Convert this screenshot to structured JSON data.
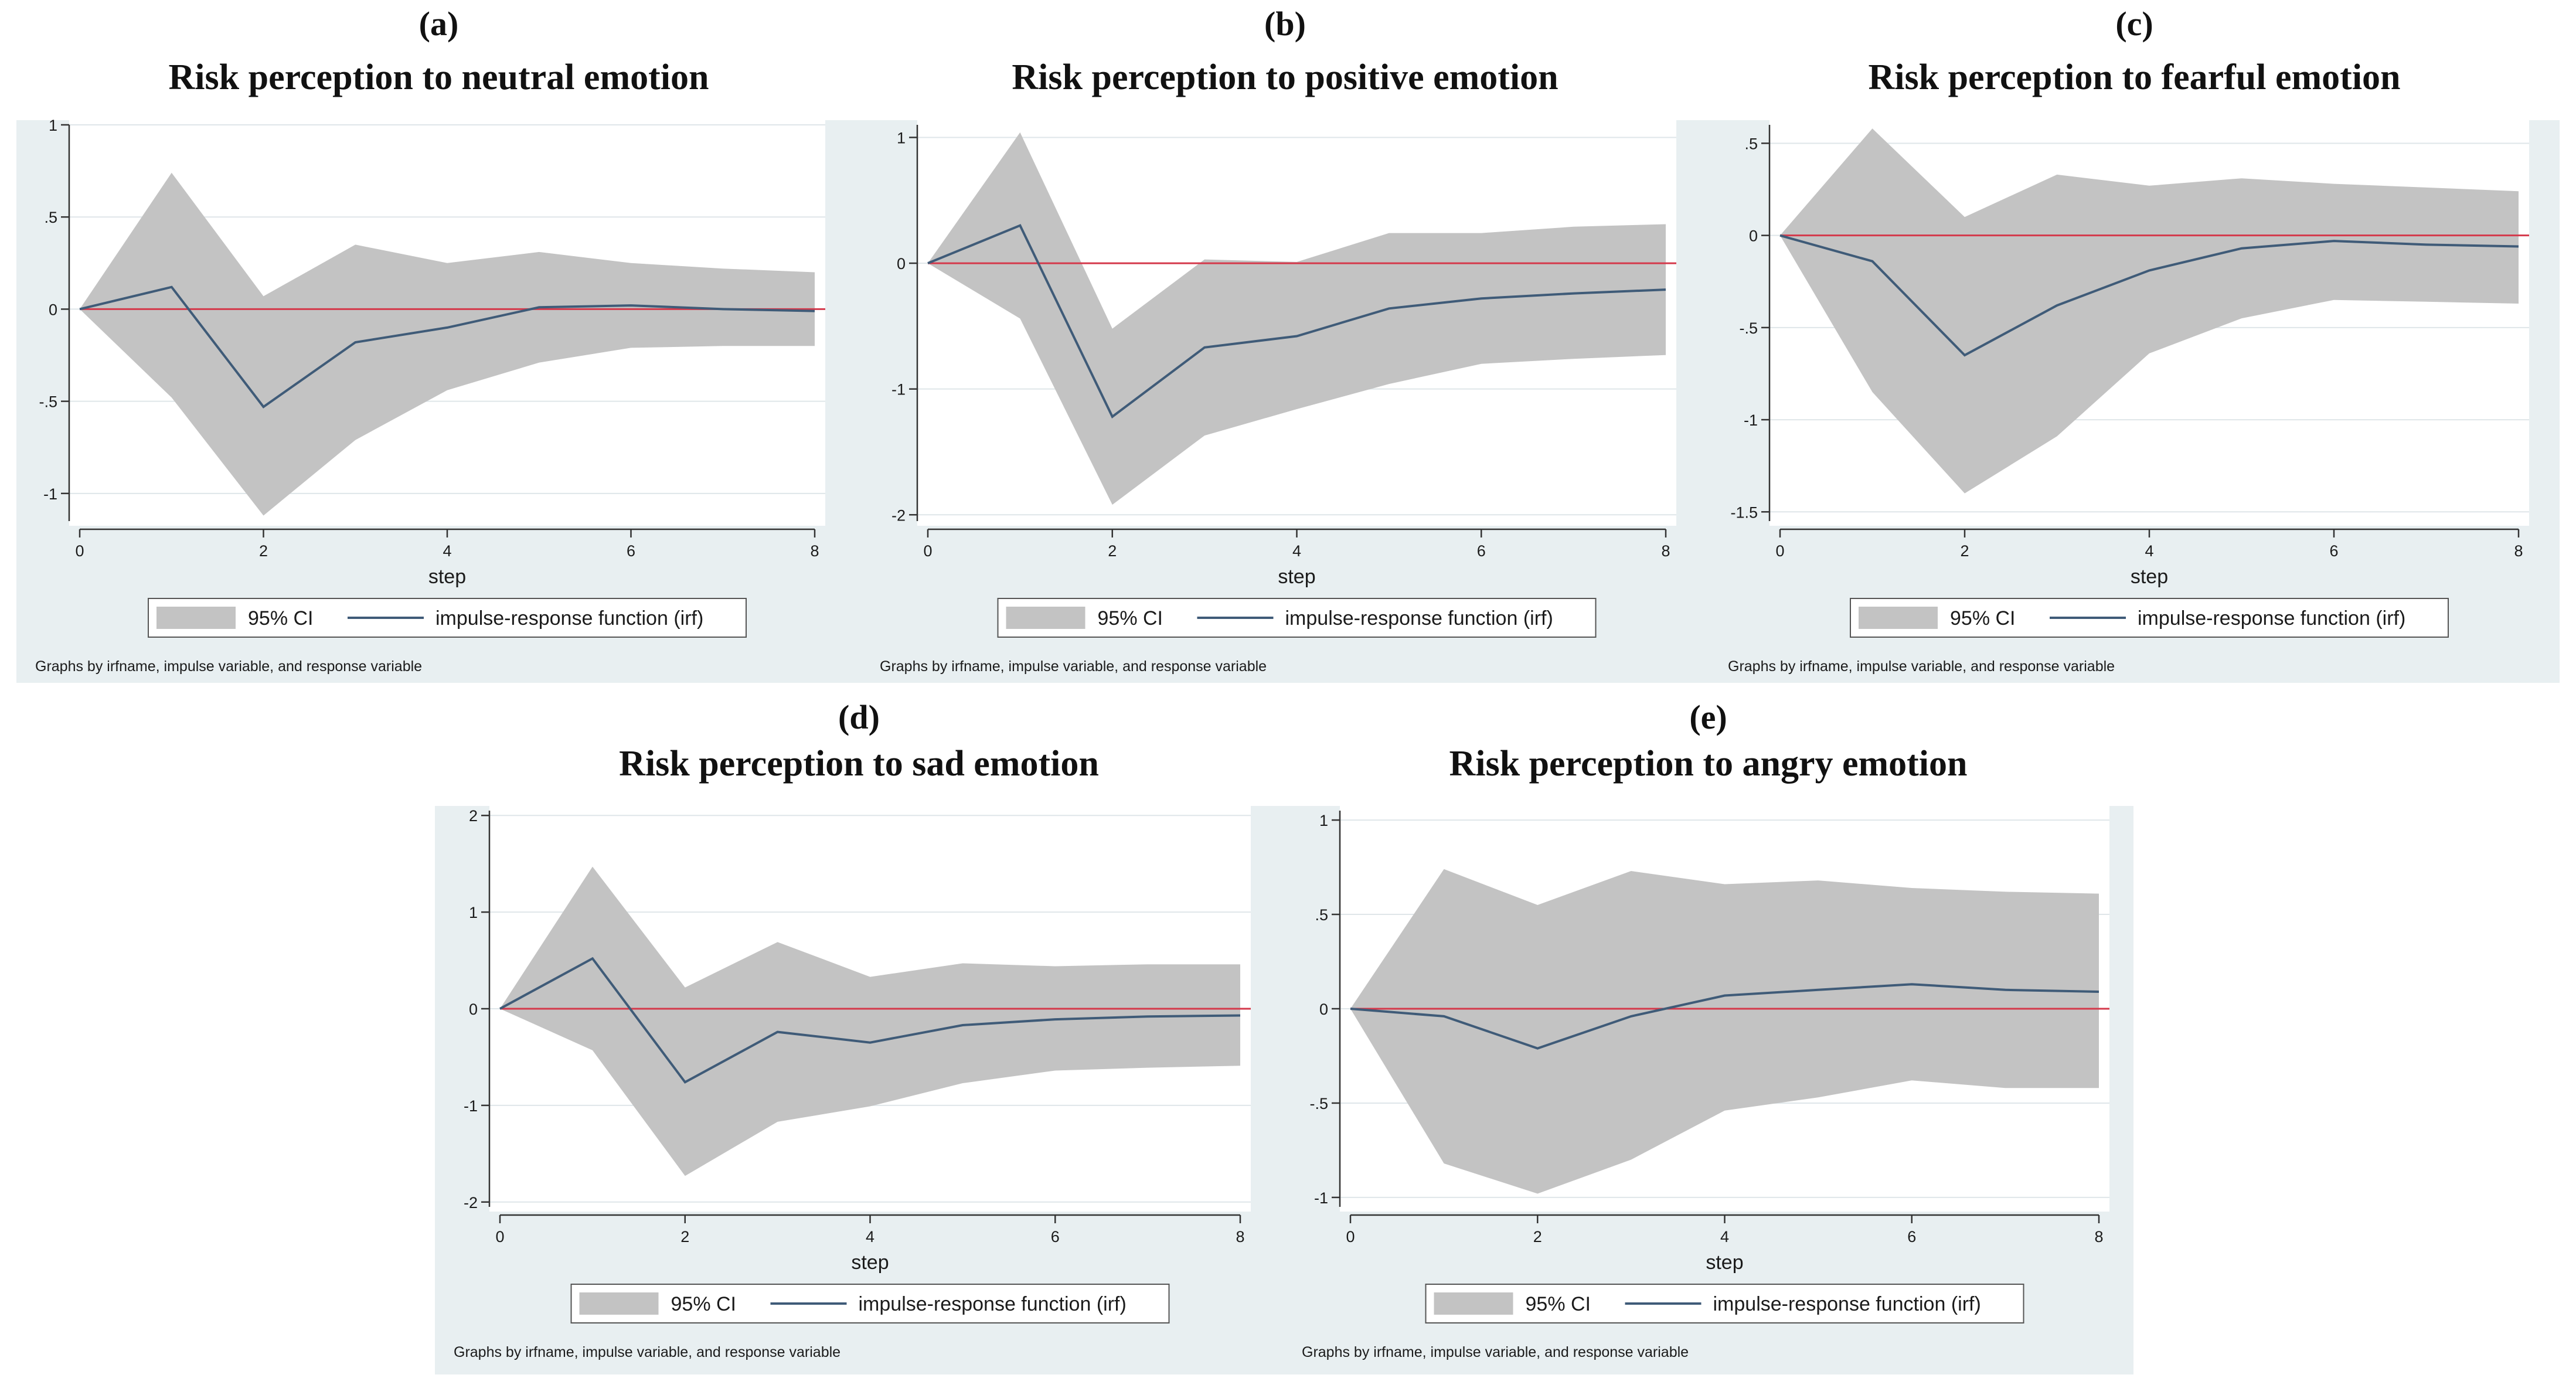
{
  "colors": {
    "panel_bg": "#e8eff1",
    "plot_bg": "#ffffff",
    "ci_fill": "#c3c3c3",
    "irf_line": "#3f5b78",
    "zero_line": "#d4394b",
    "grid": "#dfe6e9",
    "text": "#1b1b1b"
  },
  "legend": {
    "ci_label": "95% CI",
    "irf_label": "impulse-response function (irf)"
  },
  "xaxis_title": "step",
  "footnote": "Graphs by irfname, impulse variable, and response variable",
  "chart_data": [
    {
      "id": "a",
      "type": "area",
      "letter": "(a)",
      "title": "Risk perception to neutral emotion",
      "xlabel": "step",
      "ylabel": "",
      "xlim": [
        0,
        8
      ],
      "xticks": [
        0,
        2,
        4,
        6,
        8
      ],
      "xtick_labels": [
        "0",
        "2",
        "4",
        "6",
        "8"
      ],
      "ylim": [
        -1.15,
        1.0
      ],
      "yticks": [
        1,
        0.5,
        0,
        -0.5,
        -1
      ],
      "ytick_labels": [
        "1",
        ".5",
        "0",
        "-.5",
        "-1"
      ],
      "series": [
        {
          "name": "impulse-response function (irf)",
          "x": [
            0,
            1,
            2,
            3,
            4,
            5,
            6,
            7,
            8
          ],
          "values": [
            0,
            0.12,
            -0.53,
            -0.18,
            -0.1,
            0.01,
            0.02,
            0.0,
            -0.01
          ]
        },
        {
          "name": "95% CI upper",
          "x": [
            0,
            1,
            2,
            3,
            4,
            5,
            6,
            7,
            8
          ],
          "values": [
            0,
            0.74,
            0.07,
            0.35,
            0.25,
            0.31,
            0.25,
            0.22,
            0.2
          ]
        },
        {
          "name": "95% CI lower",
          "x": [
            0,
            1,
            2,
            3,
            4,
            5,
            6,
            7,
            8
          ],
          "values": [
            0,
            -0.48,
            -1.12,
            -0.71,
            -0.44,
            -0.29,
            -0.21,
            -0.2,
            -0.2
          ]
        }
      ]
    },
    {
      "id": "b",
      "type": "area",
      "letter": "(b)",
      "title": "Risk perception to positive emotion",
      "xlabel": "step",
      "ylabel": "",
      "xlim": [
        0,
        8
      ],
      "xticks": [
        0,
        2,
        4,
        6,
        8
      ],
      "xtick_labels": [
        "0",
        "2",
        "4",
        "6",
        "8"
      ],
      "ylim": [
        -2.05,
        1.1
      ],
      "yticks": [
        1,
        0,
        -1,
        -2
      ],
      "ytick_labels": [
        "1",
        "0",
        "-1",
        "-2"
      ],
      "series": [
        {
          "name": "impulse-response function (irf)",
          "x": [
            0,
            1,
            2,
            3,
            4,
            5,
            6,
            7,
            8
          ],
          "values": [
            0,
            0.3,
            -1.22,
            -0.67,
            -0.58,
            -0.36,
            -0.28,
            -0.24,
            -0.21
          ]
        },
        {
          "name": "95% CI upper",
          "x": [
            0,
            1,
            2,
            3,
            4,
            5,
            6,
            7,
            8
          ],
          "values": [
            0,
            1.04,
            -0.52,
            0.03,
            0.01,
            0.24,
            0.24,
            0.29,
            0.31
          ]
        },
        {
          "name": "95% CI lower",
          "x": [
            0,
            1,
            2,
            3,
            4,
            5,
            6,
            7,
            8
          ],
          "values": [
            0,
            -0.44,
            -1.92,
            -1.37,
            -1.16,
            -0.96,
            -0.8,
            -0.76,
            -0.73
          ]
        }
      ]
    },
    {
      "id": "c",
      "type": "area",
      "letter": "(c)",
      "title": "Risk perception to fearful emotion",
      "xlabel": "step",
      "ylabel": "",
      "xlim": [
        0,
        8
      ],
      "xticks": [
        0,
        2,
        4,
        6,
        8
      ],
      "xtick_labels": [
        "0",
        "2",
        "4",
        "6",
        "8"
      ],
      "ylim": [
        -1.55,
        0.6
      ],
      "yticks": [
        0.5,
        0,
        -0.5,
        -1,
        -1.5
      ],
      "ytick_labels": [
        ".5",
        "0",
        "-.5",
        "-1",
        "-1.5"
      ],
      "series": [
        {
          "name": "impulse-response function (irf)",
          "x": [
            0,
            1,
            2,
            3,
            4,
            5,
            6,
            7,
            8
          ],
          "values": [
            0,
            -0.14,
            -0.65,
            -0.38,
            -0.19,
            -0.07,
            -0.03,
            -0.05,
            -0.06
          ]
        },
        {
          "name": "95% CI upper",
          "x": [
            0,
            1,
            2,
            3,
            4,
            5,
            6,
            7,
            8
          ],
          "values": [
            0,
            0.58,
            0.1,
            0.33,
            0.27,
            0.31,
            0.28,
            0.26,
            0.24
          ]
        },
        {
          "name": "95% CI lower",
          "x": [
            0,
            1,
            2,
            3,
            4,
            5,
            6,
            7,
            8
          ],
          "values": [
            0,
            -0.85,
            -1.4,
            -1.09,
            -0.64,
            -0.45,
            -0.35,
            -0.36,
            -0.37
          ]
        }
      ]
    },
    {
      "id": "d",
      "type": "area",
      "letter": "(d)",
      "title": "Risk perception to sad emotion",
      "xlabel": "step",
      "ylabel": "",
      "xlim": [
        0,
        8
      ],
      "xticks": [
        0,
        2,
        4,
        6,
        8
      ],
      "xtick_labels": [
        "0",
        "2",
        "4",
        "6",
        "8"
      ],
      "ylim": [
        -2.05,
        2.05
      ],
      "yticks": [
        2,
        1,
        0,
        -1,
        -2
      ],
      "ytick_labels": [
        "2",
        "1",
        "0",
        "-1",
        "-2"
      ],
      "series": [
        {
          "name": "impulse-response function (irf)",
          "x": [
            0,
            1,
            2,
            3,
            4,
            5,
            6,
            7,
            8
          ],
          "values": [
            0,
            0.52,
            -0.76,
            -0.24,
            -0.35,
            -0.17,
            -0.11,
            -0.08,
            -0.07
          ]
        },
        {
          "name": "95% CI upper",
          "x": [
            0,
            1,
            2,
            3,
            4,
            5,
            6,
            7,
            8
          ],
          "values": [
            0,
            1.47,
            0.22,
            0.69,
            0.33,
            0.47,
            0.44,
            0.46,
            0.46
          ]
        },
        {
          "name": "95% CI lower",
          "x": [
            0,
            1,
            2,
            3,
            4,
            5,
            6,
            7,
            8
          ],
          "values": [
            0,
            -0.43,
            -1.73,
            -1.17,
            -1.01,
            -0.77,
            -0.64,
            -0.61,
            -0.59
          ]
        }
      ]
    },
    {
      "id": "e",
      "type": "area",
      "letter": "(e)",
      "title": "Risk perception to angry emotion",
      "xlabel": "step",
      "ylabel": "",
      "xlim": [
        0,
        8
      ],
      "xticks": [
        0,
        2,
        4,
        6,
        8
      ],
      "xtick_labels": [
        "0",
        "2",
        "4",
        "6",
        "8"
      ],
      "ylim": [
        -1.05,
        1.05
      ],
      "yticks": [
        1,
        0.5,
        0,
        -0.5,
        -1
      ],
      "ytick_labels": [
        "1",
        ".5",
        "0",
        "-.5",
        "-1"
      ],
      "series": [
        {
          "name": "impulse-response function (irf)",
          "x": [
            0,
            1,
            2,
            3,
            4,
            5,
            6,
            7,
            8
          ],
          "values": [
            0,
            -0.04,
            -0.21,
            -0.04,
            0.07,
            0.1,
            0.13,
            0.1,
            0.09
          ]
        },
        {
          "name": "95% CI upper",
          "x": [
            0,
            1,
            2,
            3,
            4,
            5,
            6,
            7,
            8
          ],
          "values": [
            0,
            0.74,
            0.55,
            0.73,
            0.66,
            0.68,
            0.64,
            0.62,
            0.61
          ]
        },
        {
          "name": "95% CI lower",
          "x": [
            0,
            1,
            2,
            3,
            4,
            5,
            6,
            7,
            8
          ],
          "values": [
            0,
            -0.82,
            -0.98,
            -0.8,
            -0.54,
            -0.47,
            -0.38,
            -0.42,
            -0.42
          ]
        }
      ]
    }
  ]
}
